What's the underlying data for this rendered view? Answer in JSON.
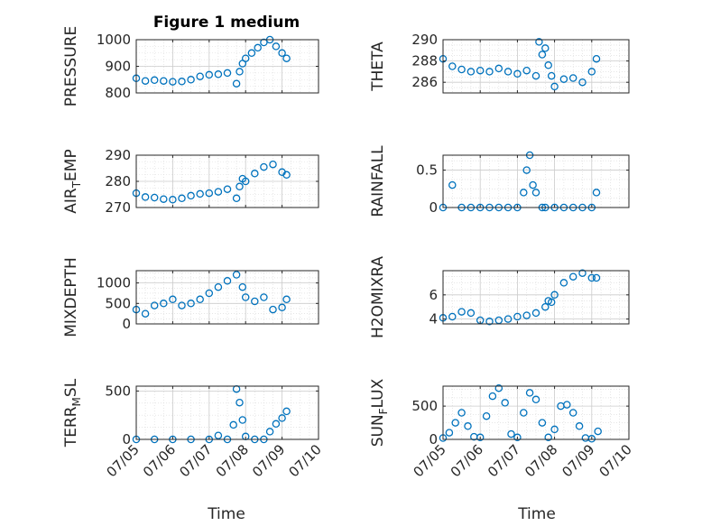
{
  "figure": {
    "title": "Figure 1 medium",
    "xlabel_left": "Time",
    "xlabel_right": "Time",
    "marker_color": "#0072BD",
    "grid_color": "#cccccc",
    "axis_color": "#262626"
  },
  "chart_data": [
    {
      "type": "scatter",
      "ylabel": "PRESSURE",
      "xlim": [
        "07/05",
        "07/10"
      ],
      "ylim": [
        800,
        1000
      ],
      "yticks": [
        800,
        900,
        1000
      ],
      "xticks": [
        "07/05",
        "07/06",
        "07/07",
        "07/08",
        "07/09",
        "07/10"
      ],
      "x": [
        "07/05 00:00",
        "07/05 06:00",
        "07/05 12:00",
        "07/05 18:00",
        "07/06 00:00",
        "07/06 06:00",
        "07/06 12:00",
        "07/06 18:00",
        "07/07 00:00",
        "07/07 06:00",
        "07/07 12:00",
        "07/07 18:00",
        "07/07 20:00",
        "07/07 22:00",
        "07/08 00:00",
        "07/08 04:00",
        "07/08 08:00",
        "07/08 12:00",
        "07/08 16:00",
        "07/08 20:00",
        "07/09 00:00",
        "07/09 03:00"
      ],
      "y": [
        855,
        845,
        848,
        845,
        842,
        843,
        850,
        862,
        868,
        870,
        875,
        835,
        880,
        910,
        930,
        950,
        970,
        990,
        1000,
        975,
        950,
        930
      ]
    },
    {
      "type": "scatter",
      "ylabel": "THETA",
      "xlim": [
        "07/05",
        "07/10"
      ],
      "ylim": [
        285,
        290
      ],
      "yticks": [
        286,
        288,
        290
      ],
      "xticks": [
        "07/05",
        "07/06",
        "07/07",
        "07/08",
        "07/09",
        "07/10"
      ],
      "x": [
        "07/05 00:00",
        "07/05 06:00",
        "07/05 12:00",
        "07/05 18:00",
        "07/06 00:00",
        "07/06 06:00",
        "07/06 12:00",
        "07/06 18:00",
        "07/07 00:00",
        "07/07 06:00",
        "07/07 12:00",
        "07/07 14:00",
        "07/07 16:00",
        "07/07 18:00",
        "07/07 20:00",
        "07/07 22:00",
        "07/08 00:00",
        "07/08 06:00",
        "07/08 12:00",
        "07/08 18:00",
        "07/09 00:00",
        "07/09 03:00"
      ],
      "y": [
        288.2,
        287.5,
        287.2,
        287.0,
        287.1,
        287.0,
        287.3,
        287.0,
        286.8,
        287.1,
        286.6,
        289.8,
        288.6,
        289.2,
        287.6,
        286.6,
        285.6,
        286.3,
        286.4,
        286.0,
        287.0,
        288.2
      ]
    },
    {
      "type": "scatter",
      "ylabel": "AIR_TEMP",
      "xlim": [
        "07/05",
        "07/10"
      ],
      "ylim": [
        270,
        290
      ],
      "yticks": [
        270,
        280,
        290
      ],
      "xticks": [
        "07/05",
        "07/06",
        "07/07",
        "07/08",
        "07/09",
        "07/10"
      ],
      "x": [
        "07/05 00:00",
        "07/05 06:00",
        "07/05 12:00",
        "07/05 18:00",
        "07/06 00:00",
        "07/06 06:00",
        "07/06 12:00",
        "07/06 18:00",
        "07/07 00:00",
        "07/07 06:00",
        "07/07 12:00",
        "07/07 18:00",
        "07/07 20:00",
        "07/07 22:00",
        "07/08 00:00",
        "07/08 06:00",
        "07/08 12:00",
        "07/08 18:00",
        "07/09 00:00",
        "07/09 03:00"
      ],
      "y": [
        275.5,
        274.0,
        273.8,
        273.2,
        273.0,
        273.5,
        274.5,
        275.2,
        275.5,
        276.0,
        277.0,
        273.5,
        278.0,
        281.0,
        280.0,
        283.0,
        285.5,
        286.5,
        283.5,
        282.5
      ]
    },
    {
      "type": "scatter",
      "ylabel": "RAINFALL",
      "xlim": [
        "07/05",
        "07/10"
      ],
      "ylim": [
        0,
        0.7
      ],
      "yticks": [
        0,
        0.5
      ],
      "xticks": [
        "07/05",
        "07/06",
        "07/07",
        "07/08",
        "07/09",
        "07/10"
      ],
      "x": [
        "07/05 00:00",
        "07/05 06:00",
        "07/05 12:00",
        "07/05 18:00",
        "07/06 00:00",
        "07/06 06:00",
        "07/06 12:00",
        "07/06 18:00",
        "07/07 00:00",
        "07/07 04:00",
        "07/07 06:00",
        "07/07 08:00",
        "07/07 10:00",
        "07/07 12:00",
        "07/07 16:00",
        "07/07 18:00",
        "07/08 00:00",
        "07/08 06:00",
        "07/08 12:00",
        "07/08 18:00",
        "07/09 00:00",
        "07/09 03:00"
      ],
      "y": [
        0,
        0.3,
        0,
        0,
        0,
        0,
        0,
        0,
        0,
        0.2,
        0.5,
        0.7,
        0.3,
        0.2,
        0,
        0,
        0,
        0,
        0,
        0,
        0,
        0.2
      ]
    },
    {
      "type": "scatter",
      "ylabel": "MIXDEPTH",
      "xlim": [
        "07/05",
        "07/10"
      ],
      "ylim": [
        0,
        1300
      ],
      "yticks": [
        0,
        500,
        1000
      ],
      "xticks": [
        "07/05",
        "07/06",
        "07/07",
        "07/08",
        "07/09",
        "07/10"
      ],
      "x": [
        "07/05 00:00",
        "07/05 06:00",
        "07/05 12:00",
        "07/05 18:00",
        "07/06 00:00",
        "07/06 06:00",
        "07/06 12:00",
        "07/06 18:00",
        "07/07 00:00",
        "07/07 06:00",
        "07/07 12:00",
        "07/07 18:00",
        "07/07 22:00",
        "07/08 00:00",
        "07/08 06:00",
        "07/08 12:00",
        "07/08 18:00",
        "07/09 00:00",
        "07/09 03:00"
      ],
      "y": [
        350,
        250,
        450,
        500,
        600,
        450,
        500,
        600,
        750,
        900,
        1050,
        1200,
        900,
        650,
        550,
        650,
        350,
        400,
        600
      ]
    },
    {
      "type": "scatter",
      "ylabel": "H2OMIXRA",
      "xlim": [
        "07/05",
        "07/10"
      ],
      "ylim": [
        3.6,
        8
      ],
      "yticks": [
        4,
        6
      ],
      "xticks": [
        "07/05",
        "07/06",
        "07/07",
        "07/08",
        "07/09",
        "07/10"
      ],
      "x": [
        "07/05 00:00",
        "07/05 06:00",
        "07/05 12:00",
        "07/05 18:00",
        "07/06 00:00",
        "07/06 06:00",
        "07/06 12:00",
        "07/06 18:00",
        "07/07 00:00",
        "07/07 06:00",
        "07/07 12:00",
        "07/07 18:00",
        "07/07 20:00",
        "07/07 22:00",
        "07/08 00:00",
        "07/08 06:00",
        "07/08 12:00",
        "07/08 18:00",
        "07/09 00:00",
        "07/09 03:00"
      ],
      "y": [
        4.1,
        4.2,
        4.6,
        4.5,
        3.9,
        3.8,
        3.9,
        4.0,
        4.2,
        4.3,
        4.5,
        5.0,
        5.5,
        5.4,
        6.0,
        7.0,
        7.5,
        7.8,
        7.4,
        7.4
      ]
    },
    {
      "type": "scatter",
      "ylabel": "TERR_MSL",
      "xlim": [
        "07/05",
        "07/10"
      ],
      "ylim": [
        0,
        550
      ],
      "yticks": [
        0,
        500
      ],
      "xticks": [
        "07/05",
        "07/06",
        "07/07",
        "07/08",
        "07/09",
        "07/10"
      ],
      "x": [
        "07/05 00:00",
        "07/05 12:00",
        "07/06 00:00",
        "07/06 12:00",
        "07/07 00:00",
        "07/07 06:00",
        "07/07 12:00",
        "07/07 16:00",
        "07/07 18:00",
        "07/07 20:00",
        "07/07 22:00",
        "07/08 00:00",
        "07/08 06:00",
        "07/08 12:00",
        "07/08 16:00",
        "07/08 20:00",
        "07/09 00:00",
        "07/09 03:00"
      ],
      "y": [
        0,
        0,
        0,
        0,
        0,
        40,
        0,
        150,
        520,
        380,
        200,
        30,
        0,
        0,
        80,
        160,
        220,
        290
      ]
    },
    {
      "type": "scatter",
      "ylabel": "SUN_FLUX",
      "xlim": [
        "07/05",
        "07/10"
      ],
      "ylim": [
        0,
        800
      ],
      "yticks": [
        0,
        500
      ],
      "xticks": [
        "07/05",
        "07/06",
        "07/07",
        "07/08",
        "07/09",
        "07/10"
      ],
      "x": [
        "07/05 00:00",
        "07/05 04:00",
        "07/05 08:00",
        "07/05 12:00",
        "07/05 16:00",
        "07/05 20:00",
        "07/06 00:00",
        "07/06 04:00",
        "07/06 08:00",
        "07/06 12:00",
        "07/06 16:00",
        "07/06 20:00",
        "07/07 00:00",
        "07/07 04:00",
        "07/07 08:00",
        "07/07 12:00",
        "07/07 16:00",
        "07/07 20:00",
        "07/08 00:00",
        "07/08 04:00",
        "07/08 08:00",
        "07/08 12:00",
        "07/08 16:00",
        "07/08 20:00",
        "07/09 00:00",
        "07/09 04:00"
      ],
      "y": [
        20,
        100,
        250,
        400,
        200,
        40,
        30,
        350,
        650,
        770,
        550,
        80,
        30,
        400,
        700,
        600,
        250,
        30,
        150,
        500,
        520,
        400,
        200,
        20,
        10,
        120
      ]
    }
  ]
}
